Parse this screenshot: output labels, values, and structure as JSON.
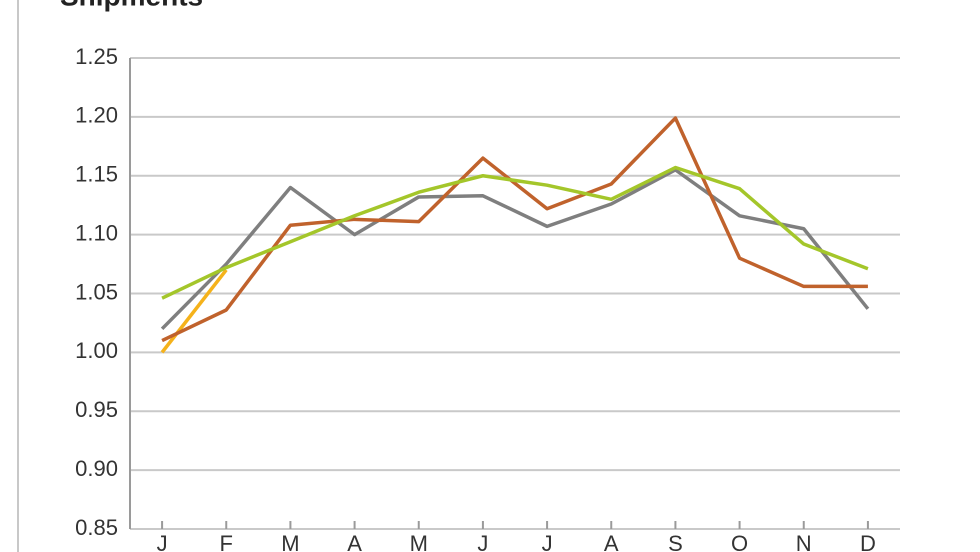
{
  "chart_data": {
    "type": "line",
    "title": "Shipments",
    "categories": [
      "J",
      "F",
      "M",
      "A",
      "M",
      "J",
      "J",
      "A",
      "S",
      "O",
      "N",
      "D"
    ],
    "series": [
      {
        "color": "#7f7f7f",
        "values": [
          1.02,
          1.075,
          1.14,
          1.1,
          1.132,
          1.133,
          1.107,
          1.126,
          1.155,
          1.116,
          1.105,
          1.037
        ]
      },
      {
        "color": "#f5b21b",
        "values": [
          1.0,
          1.07,
          null,
          null,
          null,
          null,
          null,
          null,
          null,
          null,
          null,
          null
        ]
      },
      {
        "color": "#c0622c",
        "values": [
          1.01,
          1.036,
          1.108,
          1.113,
          1.111,
          1.165,
          1.122,
          1.143,
          1.199,
          1.08,
          1.056,
          1.056
        ]
      },
      {
        "color": "#a4c62a",
        "values": [
          1.046,
          1.072,
          1.094,
          1.116,
          1.136,
          1.15,
          1.142,
          1.13,
          1.157,
          1.139,
          1.092,
          1.071
        ]
      }
    ],
    "ylim": [
      0.85,
      1.25
    ],
    "yticks": [
      0.85,
      {
        "value": 0.9,
        "label": "0.90"
      },
      0.95,
      {
        "value": 1.0,
        "label": "1.00"
      },
      1.05,
      {
        "value": 1.1,
        "label": "1.10"
      },
      1.15,
      {
        "value": 1.2,
        "label": "1.20"
      },
      1.25
    ],
    "grid": true
  }
}
